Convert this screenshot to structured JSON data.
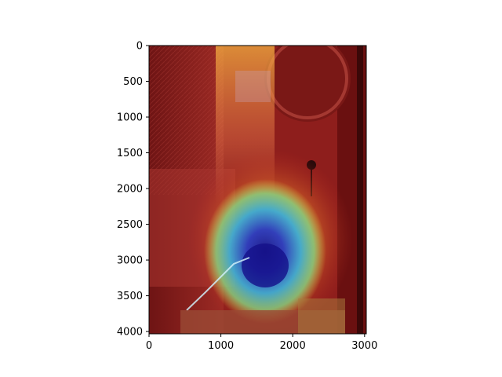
{
  "figure": {
    "background": "#ffffff",
    "frame_color": "#000000"
  },
  "chart_data": {
    "type": "heatmap",
    "title": "",
    "xlabel": "",
    "ylabel": "",
    "xlim": [
      0,
      3024
    ],
    "ylim": [
      4032,
      0
    ],
    "y_axis_inverted": true,
    "grid": false,
    "colormap": "jet",
    "x_ticks": [
      0,
      1000,
      2000,
      3000
    ],
    "y_ticks": [
      0,
      500,
      1000,
      1500,
      2000,
      2500,
      3000,
      3500,
      4000
    ],
    "image_description_colors": {
      "base_overlay": "#8b1a1a",
      "hotspot_low": "#1a1aa8",
      "hotspot_mid": "#39c8e8",
      "ring": "#e8e04a"
    },
    "hotspot_center": {
      "x": 1600,
      "y": 3050
    }
  }
}
